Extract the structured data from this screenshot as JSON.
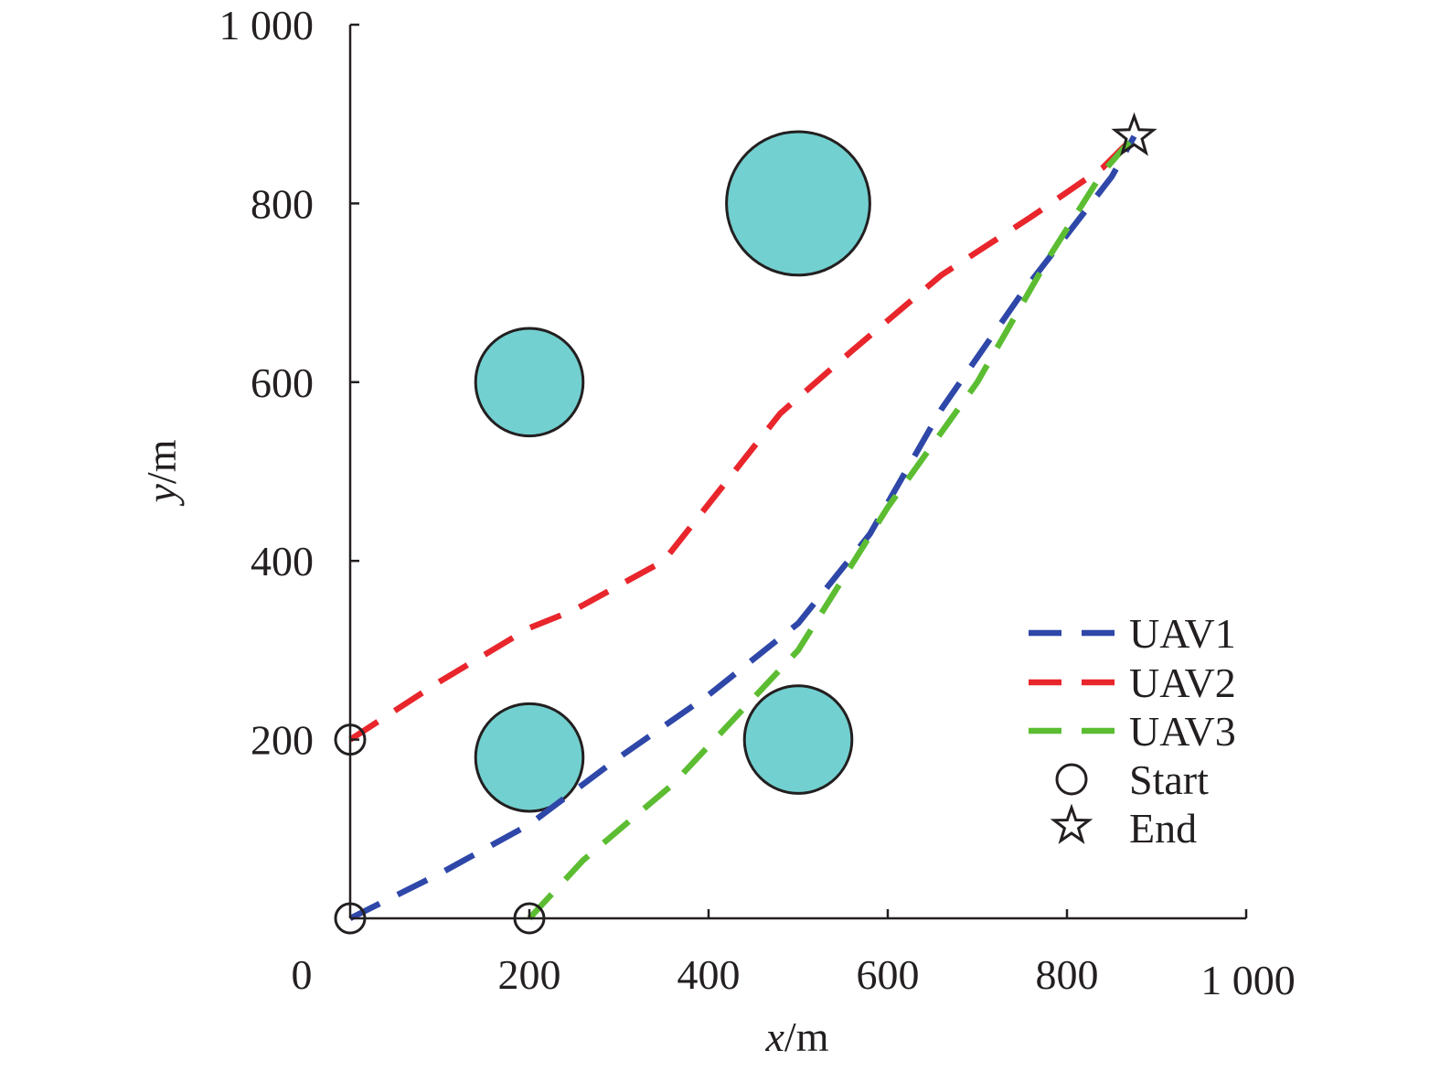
{
  "chart_data": {
    "type": "line",
    "title": "",
    "xlabel": {
      "var": "x",
      "unit": "/m"
    },
    "ylabel": {
      "var": "y",
      "unit": "/m"
    },
    "xlim": [
      0,
      1000
    ],
    "ylim": [
      0,
      1000
    ],
    "xticks": [
      {
        "value": 0,
        "label": "0"
      },
      {
        "value": 200,
        "label": "200"
      },
      {
        "value": 400,
        "label": "400"
      },
      {
        "value": 600,
        "label": "600"
      },
      {
        "value": 800,
        "label": "800"
      },
      {
        "value": 1000,
        "label": "1 000"
      }
    ],
    "yticks": [
      {
        "value": 200,
        "label": "200"
      },
      {
        "value": 400,
        "label": "400"
      },
      {
        "value": 600,
        "label": "600"
      },
      {
        "value": 800,
        "label": "800"
      },
      {
        "value": 1000,
        "label": "1 000"
      }
    ],
    "grid": false,
    "legend_position": "bottom-right",
    "obstacles": [
      {
        "x": 200,
        "y": 600,
        "r": 60
      },
      {
        "x": 500,
        "y": 800,
        "r": 80
      },
      {
        "x": 200,
        "y": 180,
        "r": 60
      },
      {
        "x": 500,
        "y": 200,
        "r": 60
      }
    ],
    "obstacle_color": "#73d0d0",
    "series": [
      {
        "name": "UAV1",
        "color": "#2e47a8",
        "points": [
          [
            0,
            0
          ],
          [
            100,
            50
          ],
          [
            200,
            105
          ],
          [
            300,
            180
          ],
          [
            400,
            250
          ],
          [
            500,
            330
          ],
          [
            580,
            430
          ],
          [
            660,
            570
          ],
          [
            750,
            700
          ],
          [
            850,
            830
          ],
          [
            875,
            875
          ]
        ]
      },
      {
        "name": "UAV2",
        "color": "#e8262c",
        "points": [
          [
            0,
            200
          ],
          [
            100,
            265
          ],
          [
            200,
            325
          ],
          [
            250,
            345
          ],
          [
            350,
            400
          ],
          [
            480,
            565
          ],
          [
            560,
            635
          ],
          [
            660,
            720
          ],
          [
            760,
            785
          ],
          [
            840,
            840
          ],
          [
            875,
            875
          ]
        ]
      },
      {
        "name": "UAV3",
        "color": "#5cbd32",
        "points": [
          [
            200,
            0
          ],
          [
            260,
            65
          ],
          [
            360,
            150
          ],
          [
            500,
            300
          ],
          [
            600,
            460
          ],
          [
            700,
            600
          ],
          [
            780,
            740
          ],
          [
            840,
            835
          ],
          [
            875,
            875
          ]
        ]
      }
    ],
    "markers": {
      "start": {
        "label": "Start",
        "points": [
          [
            0,
            0
          ],
          [
            0,
            200
          ],
          [
            200,
            0
          ]
        ]
      },
      "end": {
        "label": "End",
        "points": [
          [
            875,
            875
          ]
        ]
      }
    }
  }
}
